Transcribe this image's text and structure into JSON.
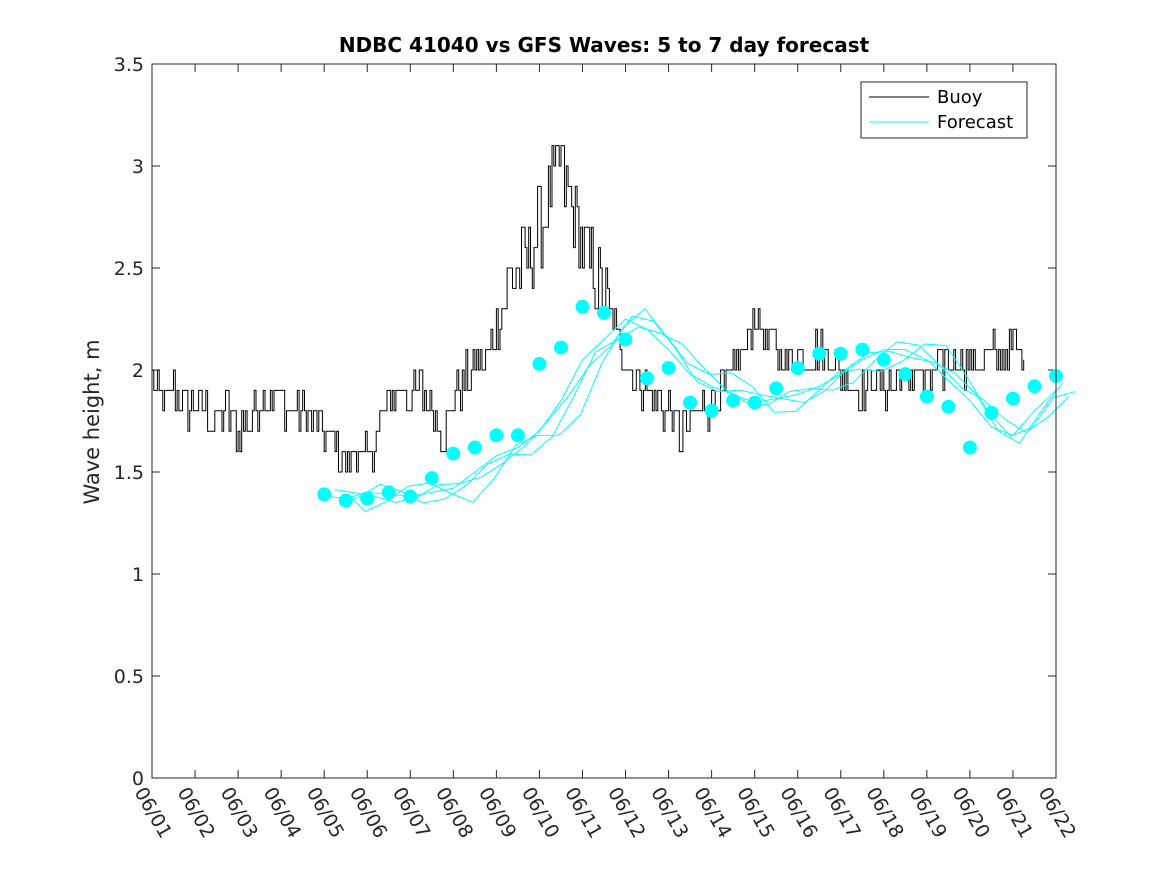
{
  "chart_data": {
    "type": "line",
    "title": "NDBC 41040 vs GFS Waves: 5 to 7 day forecast",
    "xlabel": "",
    "ylabel": "Wave height, m",
    "x_tick_labels": [
      "06/01",
      "06/02",
      "06/03",
      "06/04",
      "06/05",
      "06/06",
      "06/07",
      "06/08",
      "06/09",
      "06/10",
      "06/11",
      "06/12",
      "06/13",
      "06/14",
      "06/15",
      "06/16",
      "06/17",
      "06/18",
      "06/19",
      "06/20",
      "06/21",
      "06/22"
    ],
    "xlim_days": [
      0,
      21
    ],
    "ylim": [
      0,
      3.5
    ],
    "y_ticks": [
      "0",
      "0.5",
      "1",
      "1.5",
      "2",
      "2.5",
      "3",
      "3.5"
    ],
    "grid": false,
    "legend": {
      "location": "top-right",
      "entries": [
        {
          "name": "Buoy",
          "color": "#000000"
        },
        {
          "name": "Forecast",
          "color": "#00ffff"
        }
      ]
    },
    "series": [
      {
        "name": "Buoy",
        "color": "#000000",
        "style": "line",
        "x": [
          0.0,
          0.25,
          0.5,
          0.75,
          1.0,
          1.25,
          1.5,
          1.75,
          2.0,
          2.25,
          2.5,
          2.75,
          3.0,
          3.25,
          3.5,
          3.75,
          4.0,
          4.25,
          4.5,
          4.75,
          5.0,
          5.25,
          5.5,
          5.75,
          6.0,
          6.25,
          6.5,
          6.75,
          7.0,
          7.25,
          7.5,
          7.75,
          8.0,
          8.25,
          8.5,
          8.75,
          9.0,
          9.25,
          9.5,
          9.75,
          10.0,
          10.25,
          10.5,
          10.75,
          11.0,
          11.25,
          11.5,
          11.75,
          12.0,
          12.25,
          12.5,
          12.75,
          13.0,
          13.25,
          13.5,
          13.75,
          14.0,
          14.25,
          14.5,
          14.75,
          15.0,
          15.25,
          15.5,
          15.75,
          16.0,
          16.25,
          16.5,
          16.75,
          17.0,
          17.25,
          17.5,
          17.75,
          18.0,
          18.25,
          18.5,
          18.75,
          19.0,
          19.25,
          19.5,
          19.75,
          20.0,
          20.25
        ],
        "y": [
          1.95,
          1.85,
          1.9,
          1.8,
          1.85,
          1.8,
          1.75,
          1.8,
          1.7,
          1.75,
          1.85,
          1.9,
          1.85,
          1.8,
          1.8,
          1.75,
          1.7,
          1.65,
          1.55,
          1.6,
          1.55,
          1.7,
          1.85,
          1.9,
          1.85,
          1.9,
          1.8,
          1.7,
          1.85,
          1.95,
          2.0,
          2.05,
          2.2,
          2.4,
          2.5,
          2.55,
          2.7,
          2.85,
          3.0,
          2.8,
          2.6,
          2.5,
          2.35,
          2.2,
          2.05,
          1.95,
          1.9,
          1.85,
          1.8,
          1.7,
          1.75,
          1.8,
          1.85,
          1.9,
          2.0,
          2.1,
          2.25,
          2.15,
          2.1,
          2.05,
          2.1,
          2.05,
          2.1,
          2.05,
          2.0,
          1.95,
          1.9,
          1.95,
          1.9,
          1.95,
          1.95,
          2.0,
          1.95,
          2.0,
          2.05,
          2.05,
          2.0,
          2.05,
          2.1,
          2.05,
          2.1,
          2.05
        ]
      },
      {
        "name": "Forecast",
        "color": "#00ffff",
        "style": "line",
        "x": [
          4.1,
          4.5,
          5.0,
          5.5,
          6.0,
          6.5,
          7.0,
          7.5,
          8.0,
          8.5,
          9.0,
          9.5,
          10.0,
          10.5,
          11.0,
          11.5,
          12.0,
          12.5,
          13.0,
          13.5,
          14.0,
          14.5,
          15.0,
          15.5,
          16.0,
          16.5,
          17.0,
          17.5,
          18.0,
          18.5,
          19.0,
          19.5,
          20.0,
          20.5,
          21.0
        ],
        "y": [
          1.38,
          1.37,
          1.4,
          1.39,
          1.38,
          1.4,
          1.42,
          1.5,
          1.58,
          1.62,
          1.7,
          1.85,
          2.05,
          2.15,
          2.25,
          2.2,
          2.1,
          1.98,
          1.92,
          1.88,
          1.84,
          1.86,
          1.88,
          1.92,
          1.98,
          2.05,
          2.1,
          2.1,
          2.05,
          1.95,
          1.85,
          1.72,
          1.68,
          1.8,
          1.9
        ]
      },
      {
        "name": "Forecast",
        "color": "#00ffff",
        "style": "markers",
        "x": [
          4.0,
          4.5,
          5.0,
          5.5,
          6.0,
          6.5,
          7.0,
          7.5,
          8.0,
          8.5,
          9.0,
          9.5,
          10.0,
          10.5,
          11.0,
          11.5,
          12.0,
          12.5,
          13.0,
          13.5,
          14.0,
          14.5,
          15.0,
          15.5,
          16.0,
          16.5,
          17.0,
          17.5,
          18.0,
          18.5,
          19.0,
          19.5,
          20.0,
          20.5,
          21.0
        ],
        "y": [
          1.39,
          1.36,
          1.37,
          1.4,
          1.38,
          1.47,
          1.59,
          1.62,
          1.68,
          1.68,
          2.03,
          2.11,
          2.31,
          2.28,
          2.15,
          1.96,
          2.01,
          1.84,
          1.8,
          1.85,
          1.84,
          1.91,
          2.01,
          2.08,
          2.08,
          2.1,
          2.05,
          1.98,
          1.87,
          1.82,
          1.62,
          1.79,
          1.86,
          1.92,
          1.97
        ]
      }
    ]
  }
}
